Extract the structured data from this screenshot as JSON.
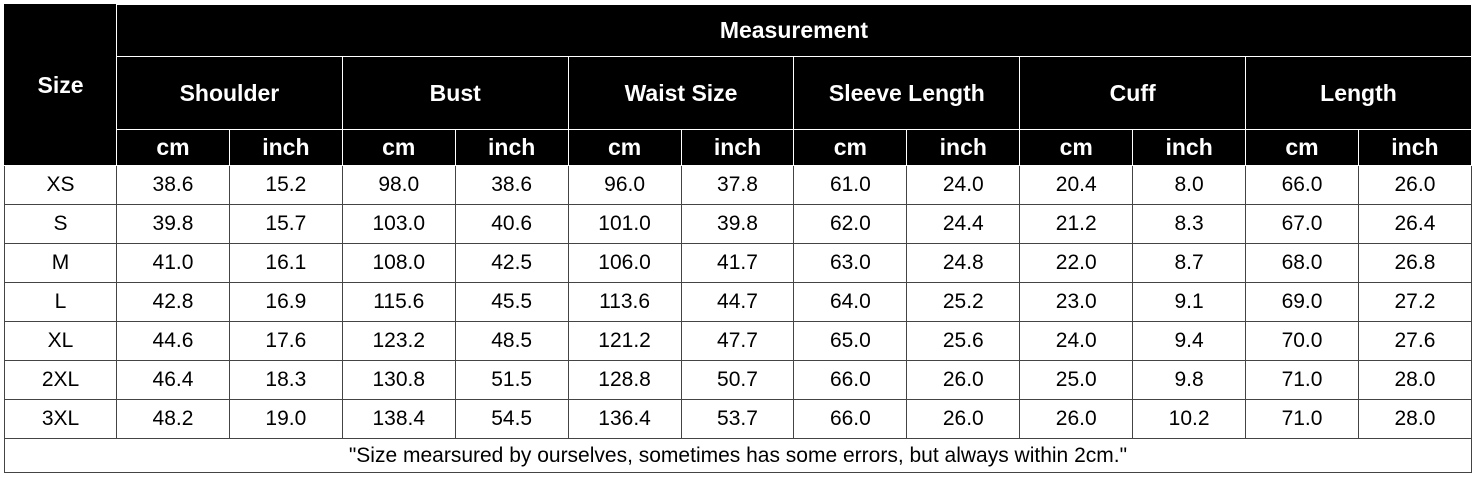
{
  "table": {
    "size_header": "Size",
    "group_header": "Measurement",
    "groups": [
      {
        "name": "Shoulder",
        "units": [
          "cm",
          "inch"
        ]
      },
      {
        "name": "Bust",
        "units": [
          "cm",
          "inch"
        ]
      },
      {
        "name": "Waist Size",
        "units": [
          "cm",
          "inch"
        ]
      },
      {
        "name": "Sleeve Length",
        "units": [
          "cm",
          "inch"
        ]
      },
      {
        "name": "Cuff",
        "units": [
          "cm",
          "inch"
        ]
      },
      {
        "name": "Length",
        "units": [
          "cm",
          "inch"
        ]
      }
    ],
    "rows": [
      [
        "XS",
        "38.6",
        "15.2",
        "98.0",
        "38.6",
        "96.0",
        "37.8",
        "61.0",
        "24.0",
        "20.4",
        "8.0",
        "66.0",
        "26.0"
      ],
      [
        "S",
        "39.8",
        "15.7",
        "103.0",
        "40.6",
        "101.0",
        "39.8",
        "62.0",
        "24.4",
        "21.2",
        "8.3",
        "67.0",
        "26.4"
      ],
      [
        "M",
        "41.0",
        "16.1",
        "108.0",
        "42.5",
        "106.0",
        "41.7",
        "63.0",
        "24.8",
        "22.0",
        "8.7",
        "68.0",
        "26.8"
      ],
      [
        "L",
        "42.8",
        "16.9",
        "115.6",
        "45.5",
        "113.6",
        "44.7",
        "64.0",
        "25.2",
        "23.0",
        "9.1",
        "69.0",
        "27.2"
      ],
      [
        "XL",
        "44.6",
        "17.6",
        "123.2",
        "48.5",
        "121.2",
        "47.7",
        "65.0",
        "25.6",
        "24.0",
        "9.4",
        "70.0",
        "27.6"
      ],
      [
        "2XL",
        "46.4",
        "18.3",
        "130.8",
        "51.5",
        "128.8",
        "50.7",
        "66.0",
        "26.0",
        "25.0",
        "9.8",
        "71.0",
        "28.0"
      ],
      [
        "3XL",
        "48.2",
        "19.0",
        "138.4",
        "54.5",
        "136.4",
        "53.7",
        "66.0",
        "26.0",
        "26.0",
        "10.2",
        "71.0",
        "28.0"
      ]
    ],
    "note": "\"Size mearsured by ourselves, sometimes has some errors, but always within 2cm.\""
  }
}
